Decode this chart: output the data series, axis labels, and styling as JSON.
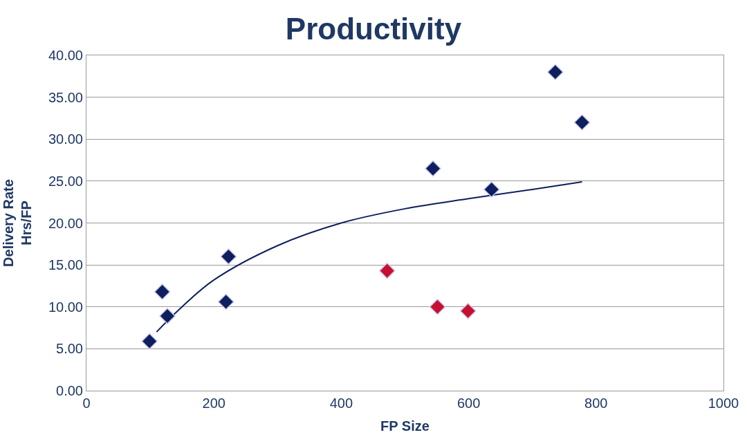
{
  "chart_data": {
    "type": "scatter",
    "title": "Productivity",
    "xlabel": "FP Size",
    "ylabel": "Delivery Rate\nHrs/FP",
    "series": [
      {
        "color": "#0d1f5c",
        "marker": "diamond",
        "x": [
          99,
          119,
          127,
          219,
          223,
          544,
          636,
          736,
          778
        ],
        "values": [
          5.9,
          11.8,
          8.9,
          10.6,
          16.0,
          26.5,
          24.0,
          38.0,
          32.0
        ]
      },
      {
        "color": "#c8102e",
        "marker": "diamond",
        "x": [
          472,
          551,
          599
        ],
        "values": [
          14.3,
          10.0,
          9.5
        ]
      },
      {
        "type": "line",
        "color": "#0d1f5c",
        "marker": "none",
        "line_style": "solid",
        "x": [
          110,
          150,
          200,
          300,
          400,
          500,
          600,
          700,
          778
        ],
        "values": [
          7.0,
          10.0,
          13.2,
          17.3,
          20.0,
          21.7,
          22.9,
          24.0,
          24.9
        ]
      }
    ],
    "xlim": [
      0,
      1000
    ],
    "xticks": [
      0,
      200,
      400,
      600,
      800,
      1000
    ],
    "ylim": [
      0,
      40
    ],
    "yticks": [
      {
        "value": 0,
        "label": "0.00"
      },
      {
        "value": 5,
        "label": "5.00"
      },
      {
        "value": 10,
        "label": "10.00"
      },
      {
        "value": 15,
        "label": "15.00"
      },
      {
        "value": 20,
        "label": "20.00"
      },
      {
        "value": 25,
        "label": "25.00"
      },
      {
        "value": 30,
        "label": "30.00"
      },
      {
        "value": 35,
        "label": "35.00"
      },
      {
        "value": 40,
        "label": "40.00"
      }
    ],
    "grid": "y"
  }
}
